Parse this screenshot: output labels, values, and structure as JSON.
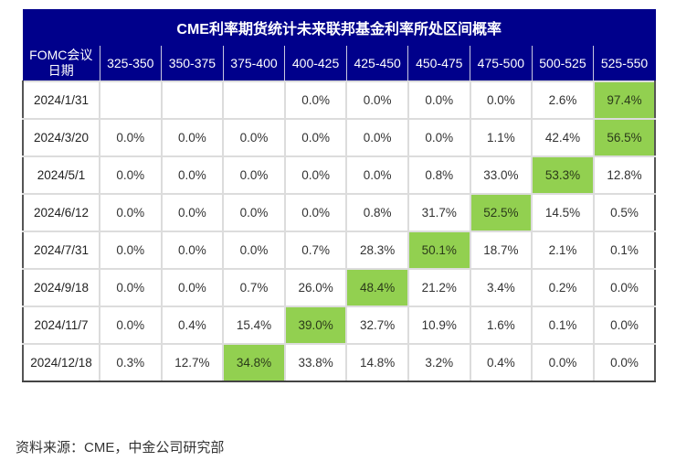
{
  "table": {
    "title": "CME利率期货统计未来联邦基金利率所处区间概率",
    "header_first": [
      "FOMC会议",
      "日期"
    ],
    "columns": [
      "325-350",
      "350-375",
      "375-400",
      "400-425",
      "425-450",
      "450-475",
      "475-500",
      "500-525",
      "525-550"
    ],
    "rows": [
      {
        "date": "2024/1/31",
        "values": [
          "",
          "",
          "",
          "0.0%",
          "0.0%",
          "0.0%",
          "0.0%",
          "2.6%",
          "97.4%"
        ],
        "highlight": 8
      },
      {
        "date": "2024/3/20",
        "values": [
          "0.0%",
          "0.0%",
          "0.0%",
          "0.0%",
          "0.0%",
          "0.0%",
          "1.1%",
          "42.4%",
          "56.5%"
        ],
        "highlight": 8
      },
      {
        "date": "2024/5/1",
        "values": [
          "0.0%",
          "0.0%",
          "0.0%",
          "0.0%",
          "0.0%",
          "0.8%",
          "33.0%",
          "53.3%",
          "12.8%"
        ],
        "highlight": 7
      },
      {
        "date": "2024/6/12",
        "values": [
          "0.0%",
          "0.0%",
          "0.0%",
          "0.0%",
          "0.8%",
          "31.7%",
          "52.5%",
          "14.5%",
          "0.5%"
        ],
        "highlight": 6
      },
      {
        "date": "2024/7/31",
        "values": [
          "0.0%",
          "0.0%",
          "0.0%",
          "0.7%",
          "28.3%",
          "50.1%",
          "18.7%",
          "2.1%",
          "0.1%"
        ],
        "highlight": 5
      },
      {
        "date": "2024/9/18",
        "values": [
          "0.0%",
          "0.0%",
          "0.7%",
          "26.0%",
          "48.4%",
          "21.2%",
          "3.4%",
          "0.2%",
          "0.0%"
        ],
        "highlight": 4
      },
      {
        "date": "2024/11/7",
        "values": [
          "0.0%",
          "0.4%",
          "15.4%",
          "39.0%",
          "32.7%",
          "10.9%",
          "1.6%",
          "0.1%",
          "0.0%"
        ],
        "highlight": 3
      },
      {
        "date": "2024/12/18",
        "values": [
          "0.3%",
          "12.7%",
          "34.8%",
          "33.8%",
          "14.8%",
          "3.2%",
          "0.4%",
          "0.0%",
          "0.0%"
        ],
        "highlight": 2
      }
    ]
  },
  "colors": {
    "header_bg": "#00008b",
    "highlight": "#92d050"
  },
  "source": "资料来源：CME，中金公司研究部"
}
